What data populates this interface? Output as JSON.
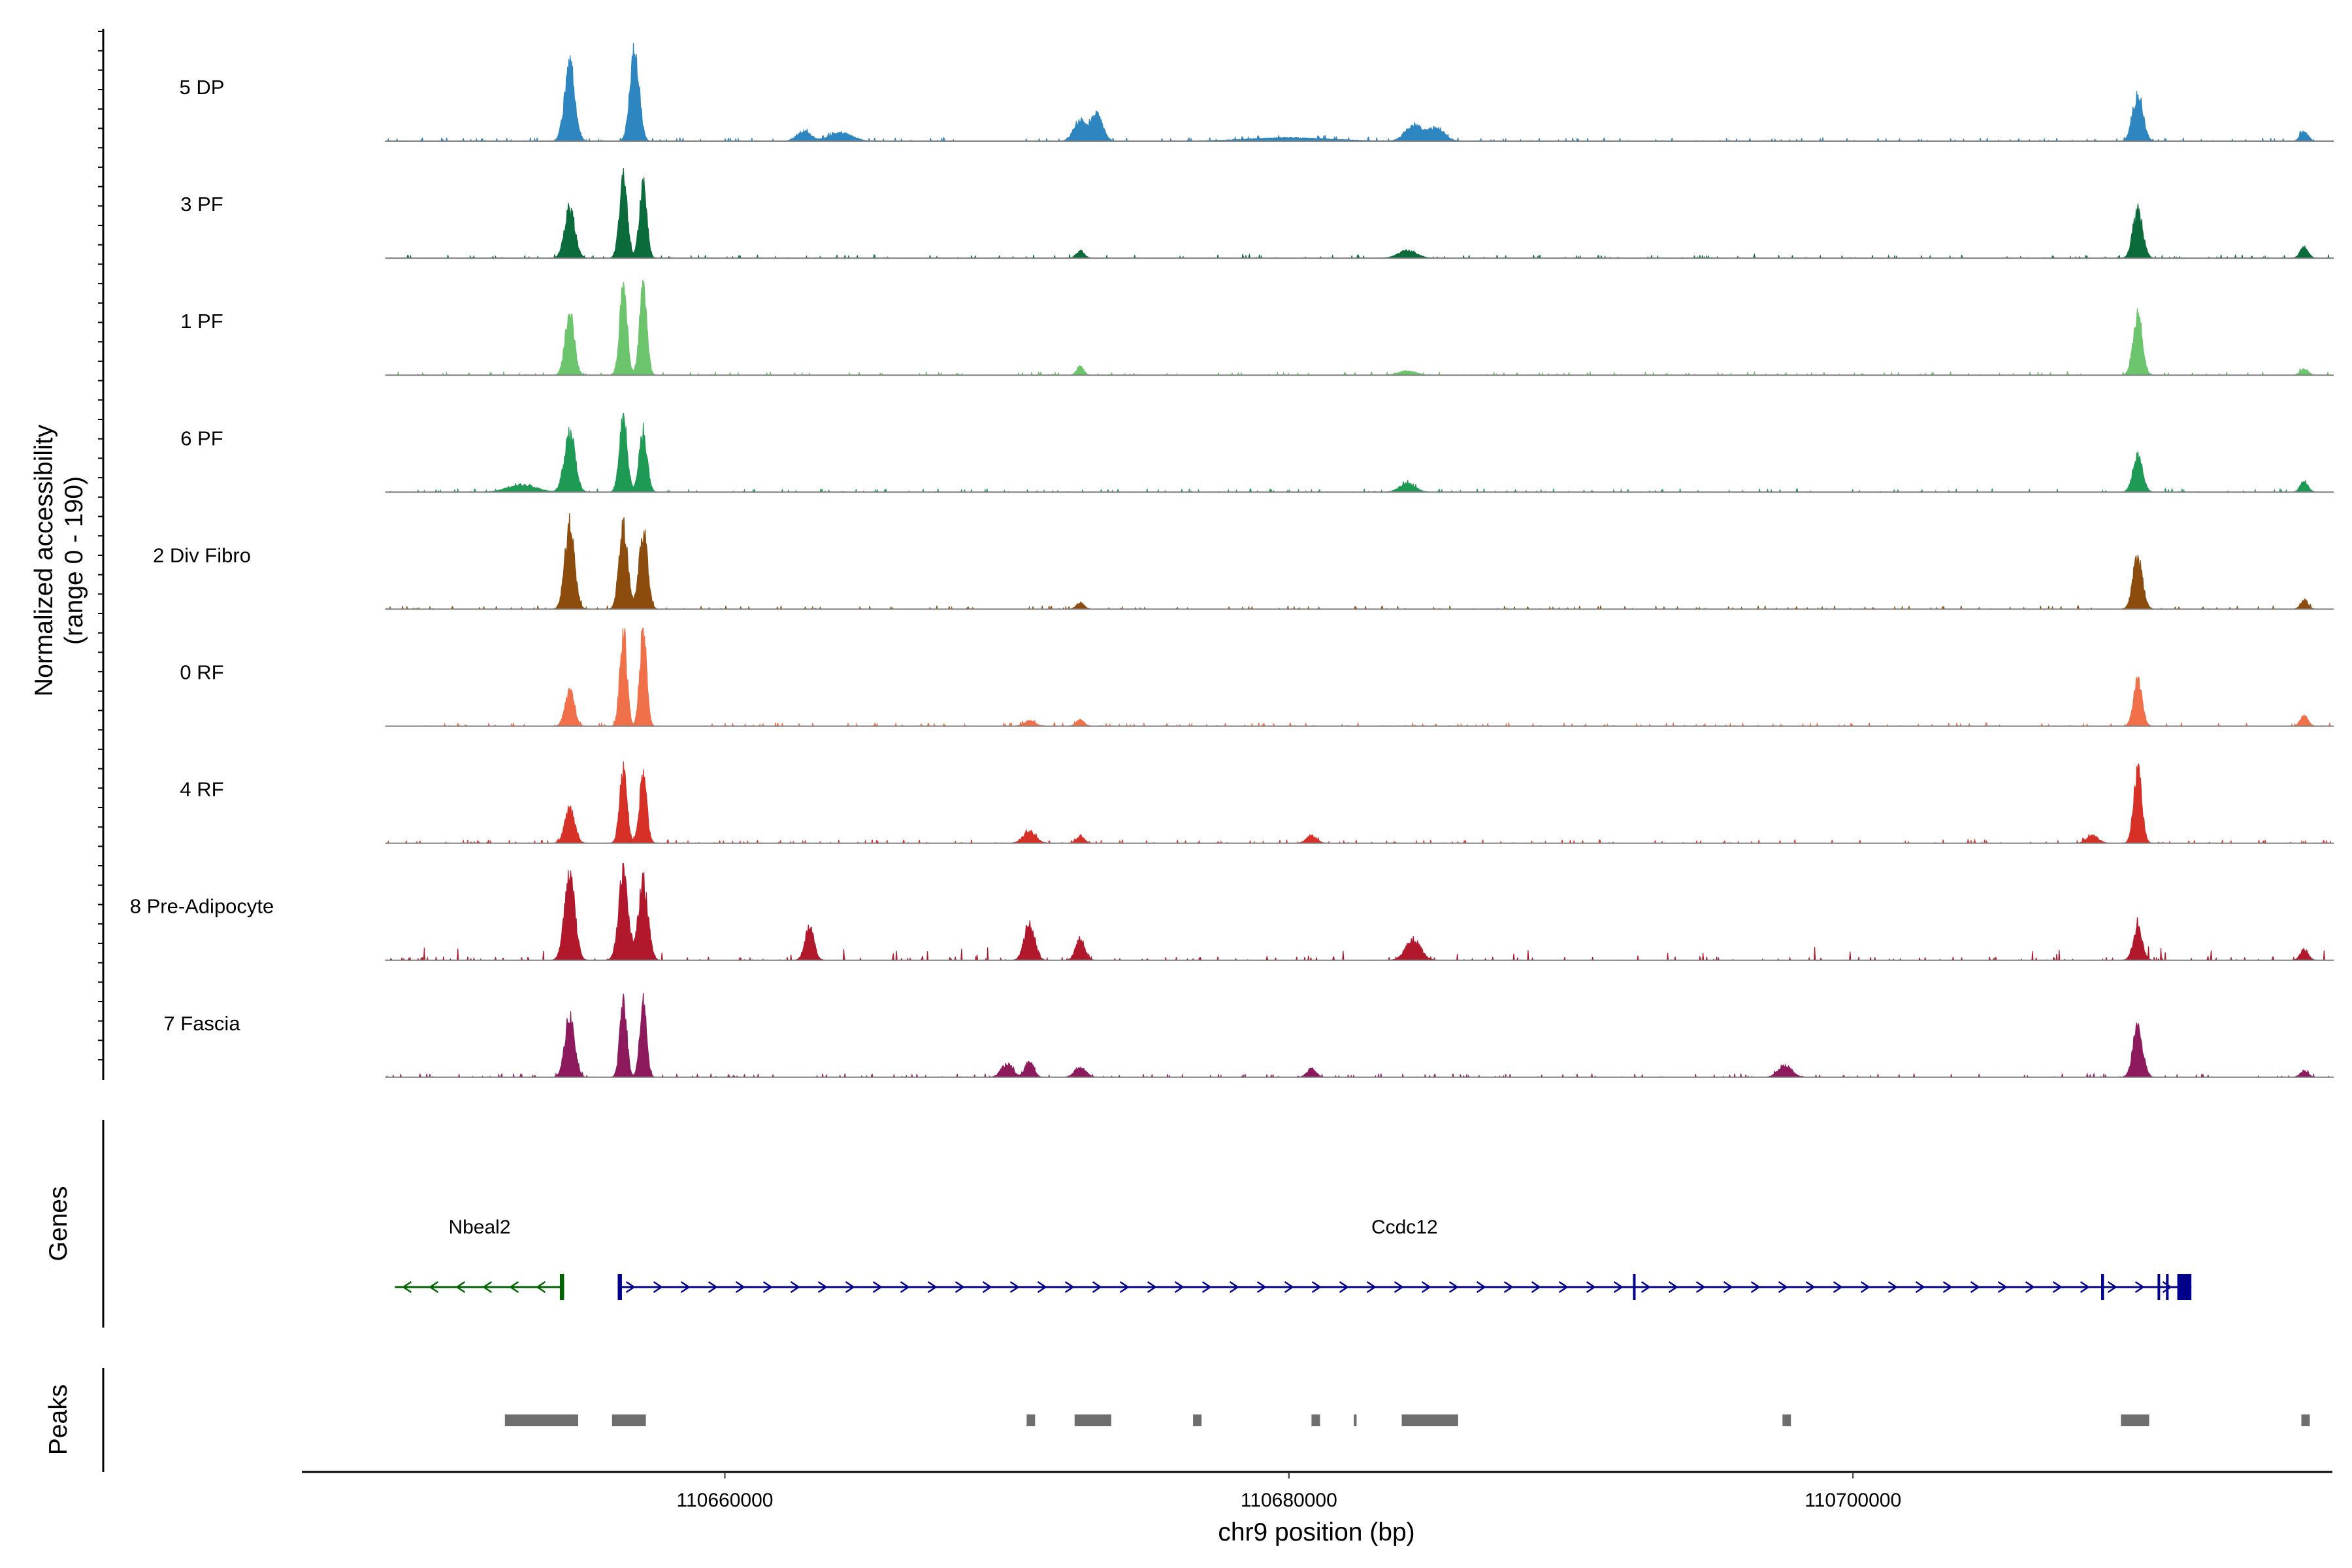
{
  "colors": {
    "axis": "#000000",
    "baseline": "#7f7f7f",
    "peak": "#6e6e6e",
    "gene_minus": "#006400",
    "gene_plus": "#00008b"
  },
  "chart_data": {
    "type": "area",
    "title": "",
    "region": {
      "chromosome": "chr9",
      "start": 110645000,
      "end": 110717000
    },
    "xlabel": "chr9 position (bp)",
    "x_ticks": [
      "110660000",
      "110680000",
      "110700000"
    ],
    "x_tick_values": [
      110660000,
      110680000,
      110700000
    ],
    "ylabel": "Normalized accessibility",
    "ylabel_range": "(range 0 - 190)",
    "ylim": [
      0,
      190
    ],
    "series": [
      {
        "name": "5 DP",
        "color": "#2e86c1",
        "peaks": [
          [
            110654500,
            145,
            180
          ],
          [
            110656800,
            175,
            160
          ],
          [
            110662800,
            18,
            250
          ],
          [
            110664100,
            16,
            400
          ],
          [
            110672600,
            40,
            220
          ],
          [
            110673200,
            50,
            200
          ],
          [
            110680000,
            6,
            1500
          ],
          [
            110684400,
            30,
            280
          ],
          [
            110685200,
            25,
            300
          ],
          [
            110710100,
            90,
            180
          ],
          [
            110716000,
            18,
            140
          ]
        ]
      },
      {
        "name": "3 PF",
        "color": "#0b6b3a",
        "peaks": [
          [
            110654500,
            95,
            180
          ],
          [
            110656400,
            150,
            140
          ],
          [
            110657100,
            140,
            130
          ],
          [
            110672600,
            14,
            140
          ],
          [
            110684200,
            14,
            320
          ],
          [
            110710100,
            95,
            170
          ],
          [
            110716000,
            22,
            140
          ]
        ]
      },
      {
        "name": "1 PF",
        "color": "#6cc46c",
        "peaks": [
          [
            110654500,
            115,
            160
          ],
          [
            110656400,
            170,
            130
          ],
          [
            110657100,
            160,
            130
          ],
          [
            110672600,
            18,
            120
          ],
          [
            110684200,
            8,
            300
          ],
          [
            110710100,
            115,
            160
          ],
          [
            110716000,
            12,
            140
          ]
        ]
      },
      {
        "name": "6 PF",
        "color": "#1e9a55",
        "peaks": [
          [
            110654500,
            110,
            190
          ],
          [
            110656400,
            135,
            140
          ],
          [
            110657100,
            115,
            140
          ],
          [
            110652800,
            14,
            500
          ],
          [
            110684200,
            16,
            280
          ],
          [
            110710100,
            68,
            170
          ],
          [
            110716000,
            20,
            140
          ]
        ]
      },
      {
        "name": "2 Div Fibro",
        "color": "#8b4c0d",
        "peaks": [
          [
            110654500,
            160,
            170
          ],
          [
            110656400,
            155,
            150
          ],
          [
            110657100,
            150,
            150
          ],
          [
            110672600,
            12,
            140
          ],
          [
            110710100,
            95,
            170
          ],
          [
            110716000,
            18,
            130
          ]
        ]
      },
      {
        "name": "0 RF",
        "color": "#f0704a",
        "peaks": [
          [
            110654500,
            70,
            160
          ],
          [
            110656400,
            185,
            120
          ],
          [
            110657100,
            180,
            120
          ],
          [
            110670800,
            10,
            200
          ],
          [
            110672600,
            12,
            140
          ],
          [
            110710100,
            85,
            150
          ],
          [
            110716000,
            20,
            140
          ]
        ]
      },
      {
        "name": "4 RF",
        "color": "#d73027",
        "peaks": [
          [
            110654500,
            65,
            170
          ],
          [
            110656400,
            135,
            130
          ],
          [
            110657100,
            125,
            130
          ],
          [
            110670800,
            22,
            220
          ],
          [
            110672600,
            14,
            140
          ],
          [
            110680800,
            14,
            180
          ],
          [
            110708500,
            14,
            200
          ],
          [
            110710100,
            140,
            140
          ]
        ]
      },
      {
        "name": "8 Pre-Adipocyte",
        "color": "#b2182b",
        "peaks": [
          [
            110654500,
            165,
            180
          ],
          [
            110656400,
            160,
            170
          ],
          [
            110657100,
            150,
            170
          ],
          [
            110663000,
            60,
            160
          ],
          [
            110670800,
            70,
            180
          ],
          [
            110672600,
            40,
            160
          ],
          [
            110684400,
            40,
            260
          ],
          [
            110710100,
            60,
            160
          ],
          [
            110716000,
            20,
            140
          ]
        ]
      },
      {
        "name": "7 Fascia",
        "color": "#8e1a5e",
        "peaks": [
          [
            110654500,
            115,
            170
          ],
          [
            110656400,
            145,
            120
          ],
          [
            110657100,
            140,
            120
          ],
          [
            110670000,
            25,
            200
          ],
          [
            110670800,
            30,
            150
          ],
          [
            110672600,
            18,
            200
          ],
          [
            110680800,
            16,
            160
          ],
          [
            110697600,
            22,
            240
          ],
          [
            110710100,
            95,
            170
          ],
          [
            110716000,
            12,
            140
          ]
        ]
      }
    ],
    "genes": [
      {
        "name": "Nbeal2",
        "strand": "-",
        "start": 110648300,
        "end": 110654300,
        "exons": [
          [
            110654150,
            110654300
          ]
        ]
      },
      {
        "name": "Ccdc12",
        "strand": "+",
        "start": 110656200,
        "end": 110712000,
        "exons": [
          [
            110656200,
            110656350
          ],
          [
            110692200,
            110692280
          ],
          [
            110708800,
            110708900
          ],
          [
            110710800,
            110710860
          ],
          [
            110711100,
            110711150
          ],
          [
            110711500,
            110712000
          ]
        ]
      }
    ],
    "peaks_track": [
      [
        110652200,
        110654800
      ],
      [
        110656000,
        110657200
      ],
      [
        110670700,
        110671000
      ],
      [
        110672400,
        110673700
      ],
      [
        110676600,
        110676900
      ],
      [
        110680800,
        110681100
      ],
      [
        110682300,
        110682400
      ],
      [
        110684000,
        110686000
      ],
      [
        110697500,
        110697800
      ],
      [
        110709500,
        110710500
      ],
      [
        110715900,
        110716200
      ]
    ],
    "side_labels": {
      "genes": "Genes",
      "peaks": "Peaks"
    }
  }
}
